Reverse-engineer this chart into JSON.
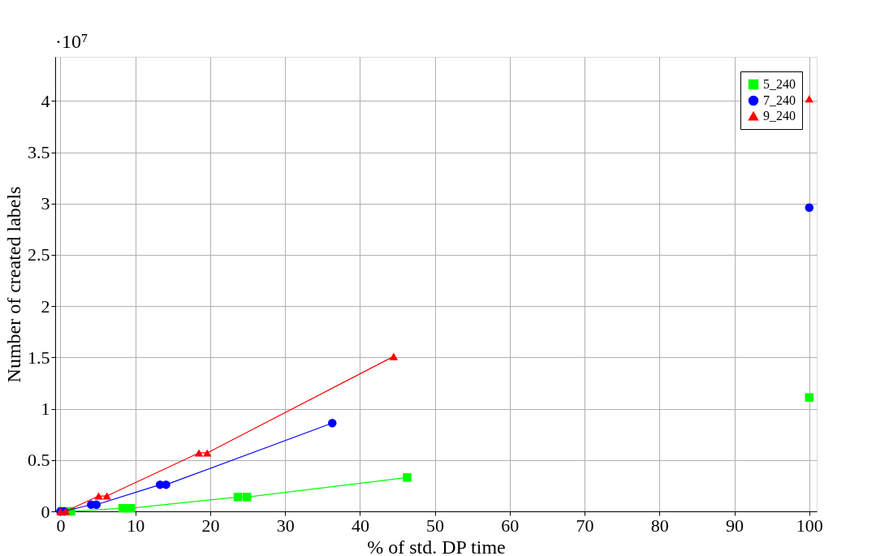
{
  "chart_data": {
    "type": "line",
    "xlabel": "% of std. DP time",
    "ylabel": "Number of created labels",
    "annotations": [
      "·10⁷"
    ],
    "xlim": [
      -0.7,
      101
    ],
    "ylim": [
      0,
      4.43
    ],
    "xticks": [
      0,
      10,
      20,
      30,
      40,
      50,
      60,
      70,
      80,
      90,
      100
    ],
    "yticks": [
      0,
      0.5,
      1,
      1.5,
      2,
      2.5,
      3,
      3.5,
      4
    ],
    "grid": true,
    "legend": "top right",
    "line_style": "solid",
    "series": [
      {
        "name": "5_240",
        "color": "#00ff00",
        "marker": "square",
        "x": [
          0.2,
          1.4,
          8.3,
          9.4,
          23.7,
          24.9,
          46.3
        ],
        "values": [
          0,
          0,
          0.03,
          0.03,
          0.14,
          0.14,
          0.33
        ]
      },
      {
        "name": "7_240",
        "color": "#0000ff",
        "marker": "circle",
        "x": [
          0,
          0.5,
          4.1,
          4.8,
          13.3,
          14.1,
          36.3
        ],
        "values": [
          0,
          0,
          0.065,
          0.065,
          0.26,
          0.26,
          0.86
        ]
      },
      {
        "name": "9_240",
        "color": "#ff0000",
        "marker": "triangle",
        "x": [
          0,
          0.7,
          5.1,
          6.2,
          18.5,
          19.6,
          44.5
        ],
        "values": [
          0,
          0,
          0.15,
          0.15,
          0.57,
          0.57,
          1.51
        ]
      },
      {
        "type": "scatter",
        "color": "#00ff00",
        "marker": "square",
        "x": [
          100
        ],
        "values": [
          1.11
        ]
      },
      {
        "type": "scatter",
        "color": "#0000ff",
        "marker": "circle",
        "x": [
          100
        ],
        "values": [
          2.96
        ]
      },
      {
        "type": "scatter",
        "color": "#ff0000",
        "marker": "triangle",
        "x": [
          100
        ],
        "values": [
          4.02
        ]
      }
    ]
  }
}
